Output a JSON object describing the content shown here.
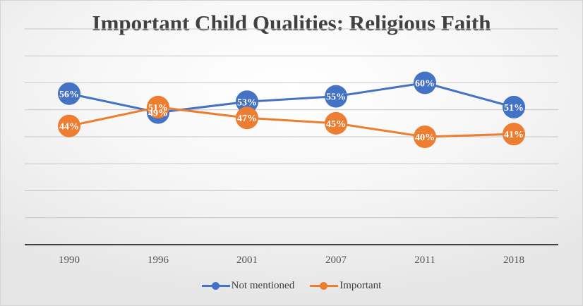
{
  "chart_data": {
    "type": "line",
    "title": "Important Child Qualities: Religious Faith",
    "categories": [
      "1990",
      "1996",
      "2001",
      "2007",
      "2011",
      "2018"
    ],
    "ylim": [
      0,
      80
    ],
    "grid": true,
    "legend": "bottom",
    "series": [
      {
        "name": "Not mentioned",
        "values": [
          56,
          49,
          53,
          55,
          60,
          51
        ],
        "labels": [
          "56%",
          "49%",
          "53%",
          "55%",
          "60%",
          "51%"
        ],
        "color": "#4472c4"
      },
      {
        "name": "Important",
        "values": [
          44,
          51,
          47,
          45,
          40,
          41
        ],
        "labels": [
          "44%",
          "51%",
          "47%",
          "45%",
          "40%",
          "41%"
        ],
        "color": "#ed7d31"
      }
    ]
  }
}
